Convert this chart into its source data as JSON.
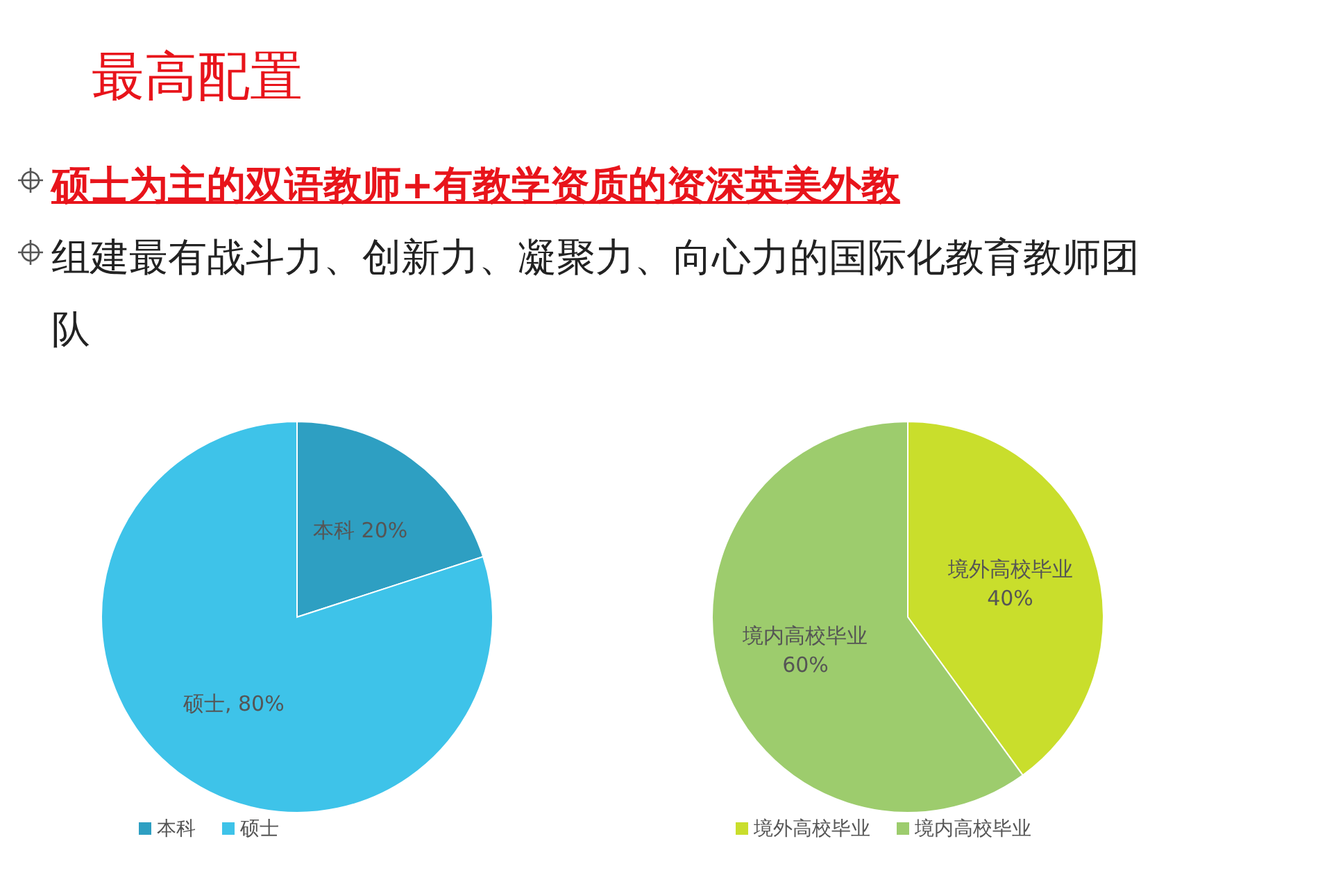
{
  "chart_data": [
    {
      "type": "other",
      "title": "最高配置",
      "annotations": [
        "硕士为主的双语教师+有教学资质的资深英美外教",
        "组建最有战斗力、创新力、凝聚力、向心力的国际化教育教师团队"
      ]
    },
    {
      "type": "pie",
      "categories": [
        "本科",
        "硕士"
      ],
      "values": [
        20,
        80
      ],
      "colors": [
        "#2e9fc2",
        "#3ec3e9"
      ],
      "value_labels": [
        "本科  20%",
        "硕士, 80%"
      ],
      "legend": "bottom"
    },
    {
      "type": "pie",
      "categories": [
        "境外高校毕业",
        "境内高校毕业"
      ],
      "values": [
        40,
        60
      ],
      "colors": [
        "#c9de2c",
        "#9dcc6d"
      ],
      "value_labels": [
        "境外高校毕业\n40%",
        "境内高校毕业\n60%"
      ],
      "legend": "bottom"
    }
  ]
}
